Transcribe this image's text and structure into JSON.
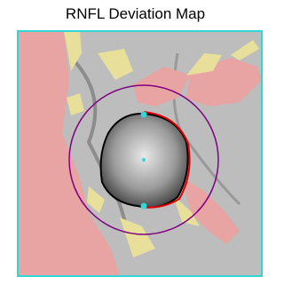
{
  "title": "RNFL Deviation Map"
}
